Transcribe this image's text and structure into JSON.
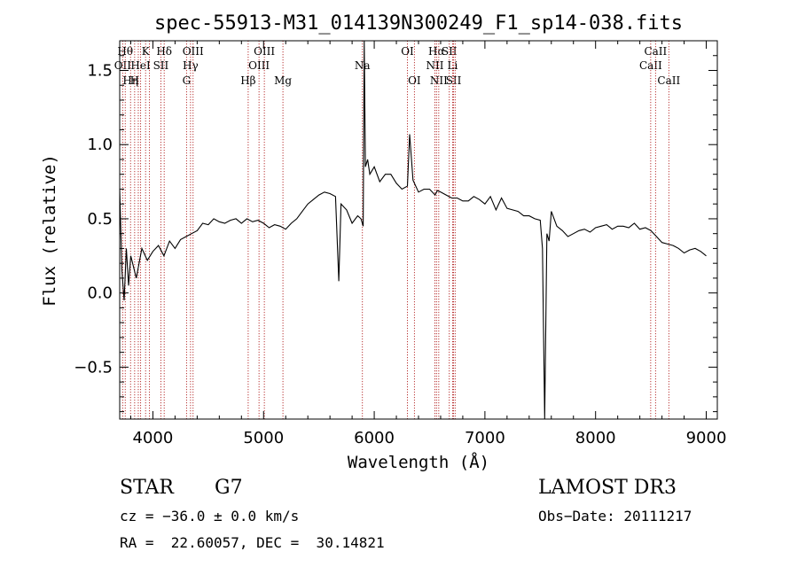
{
  "chart_data": {
    "type": "line",
    "title": "spec-55913-M31_014139N300249_F1_sp14-038.fits",
    "xlabel": "Wavelength (Å)",
    "ylabel": "Flux (relative)",
    "xlim": [
      3700,
      9100
    ],
    "ylim": [
      -0.85,
      1.7
    ],
    "x_ticks": [
      4000,
      5000,
      6000,
      7000,
      8000,
      9000
    ],
    "x_tick_labels": [
      "4000",
      "5000",
      "6000",
      "7000",
      "8000",
      "9000"
    ],
    "y_ticks": [
      -0.5,
      0.0,
      0.5,
      1.0,
      1.5
    ],
    "y_tick_labels": [
      "−0.5",
      "0.0",
      "0.5",
      "1.0",
      "1.5"
    ],
    "grid": false,
    "line_color": "#000000",
    "marker_color": "#b22222",
    "series": [
      {
        "x": [
          3700,
          3720,
          3740,
          3760,
          3780,
          3800,
          3850,
          3900,
          3950,
          4000,
          4050,
          4100,
          4150,
          4200,
          4250,
          4300,
          4350,
          4400,
          4450,
          4500,
          4550,
          4600,
          4650,
          4700,
          4750,
          4800,
          4850,
          4900,
          4950,
          5000,
          5050,
          5100,
          5150,
          5200,
          5250,
          5300,
          5350,
          5400,
          5450,
          5500,
          5550,
          5600,
          5650,
          5680,
          5700,
          5750,
          5800,
          5850,
          5880,
          5900,
          5910,
          5920,
          5940,
          5960,
          6000,
          6050,
          6100,
          6150,
          6200,
          6250,
          6300,
          6320,
          6350,
          6400,
          6450,
          6500,
          6550,
          6570,
          6600,
          6650,
          6700,
          6750,
          6800,
          6850,
          6900,
          6950,
          7000,
          7050,
          7100,
          7150,
          7200,
          7250,
          7300,
          7350,
          7400,
          7450,
          7500,
          7520,
          7540,
          7560,
          7580,
          7600,
          7650,
          7700,
          7750,
          7800,
          7850,
          7900,
          7950,
          8000,
          8050,
          8100,
          8150,
          8200,
          8250,
          8300,
          8350,
          8400,
          8450,
          8500,
          8550,
          8600,
          8650,
          8700,
          8750,
          8800,
          8850,
          8900,
          8950,
          9000
        ],
        "y": [
          0.7,
          0.15,
          -0.05,
          0.3,
          0.05,
          0.25,
          0.1,
          0.3,
          0.22,
          0.28,
          0.32,
          0.25,
          0.35,
          0.3,
          0.36,
          0.38,
          0.4,
          0.42,
          0.47,
          0.46,
          0.5,
          0.48,
          0.47,
          0.49,
          0.5,
          0.47,
          0.5,
          0.48,
          0.49,
          0.47,
          0.44,
          0.46,
          0.45,
          0.43,
          0.47,
          0.5,
          0.55,
          0.6,
          0.63,
          0.66,
          0.68,
          0.67,
          0.65,
          0.08,
          0.6,
          0.56,
          0.47,
          0.52,
          0.5,
          0.45,
          1.7,
          0.85,
          0.9,
          0.8,
          0.85,
          0.75,
          0.8,
          0.8,
          0.74,
          0.7,
          0.72,
          1.07,
          0.76,
          0.68,
          0.7,
          0.7,
          0.66,
          0.69,
          0.68,
          0.66,
          0.64,
          0.64,
          0.62,
          0.62,
          0.65,
          0.63,
          0.6,
          0.65,
          0.56,
          0.64,
          0.57,
          0.56,
          0.55,
          0.52,
          0.52,
          0.5,
          0.49,
          0.3,
          -0.85,
          0.4,
          0.35,
          0.55,
          0.45,
          0.42,
          0.38,
          0.4,
          0.42,
          0.43,
          0.41,
          0.44,
          0.45,
          0.46,
          0.43,
          0.45,
          0.45,
          0.44,
          0.47,
          0.43,
          0.44,
          0.42,
          0.38,
          0.34,
          0.33,
          0.32,
          0.3,
          0.27,
          0.29,
          0.3,
          0.28,
          0.25
        ]
      }
    ],
    "line_markers": [
      {
        "x": 3727,
        "label": "OII",
        "row": 1
      },
      {
        "x": 3750,
        "label": "Hθ",
        "row": 0
      },
      {
        "x": 3798,
        "label": "Hη",
        "row": 2
      },
      {
        "x": 3835,
        "label": "H",
        "row": 2
      },
      {
        "x": 3868,
        "label": "",
        "row": 1
      },
      {
        "x": 3889,
        "label": "HeI",
        "row": 1
      },
      {
        "x": 3934,
        "label": "K",
        "row": 0
      },
      {
        "x": 3969,
        "label": "",
        "row": 2
      },
      {
        "x": 4072,
        "label": "SII",
        "row": 1
      },
      {
        "x": 4102,
        "label": "Hδ",
        "row": 0
      },
      {
        "x": 4304,
        "label": "G",
        "row": 2
      },
      {
        "x": 4340,
        "label": "Hγ",
        "row": 1
      },
      {
        "x": 4363,
        "label": "OIII",
        "row": 0
      },
      {
        "x": 4861,
        "label": "Hβ",
        "row": 2
      },
      {
        "x": 4959,
        "label": "OIII",
        "row": 1
      },
      {
        "x": 5007,
        "label": "OIII",
        "row": 0
      },
      {
        "x": 5175,
        "label": "Mg",
        "row": 2
      },
      {
        "x": 5893,
        "label": "Na",
        "row": 1
      },
      {
        "x": 6300,
        "label": "OI",
        "row": 0
      },
      {
        "x": 6363,
        "label": "OI",
        "row": 2
      },
      {
        "x": 6548,
        "label": "NII",
        "row": 1
      },
      {
        "x": 6563,
        "label": "Hα",
        "row": 0
      },
      {
        "x": 6583,
        "label": "NII",
        "row": 2
      },
      {
        "x": 6678,
        "label": "SII",
        "row": 0
      },
      {
        "x": 6708,
        "label": "Li",
        "row": 1
      },
      {
        "x": 6717,
        "label": "SII",
        "row": 2
      },
      {
        "x": 6731,
        "label": "",
        "row": 2
      },
      {
        "x": 8498,
        "label": "CaII",
        "row": 1
      },
      {
        "x": 8542,
        "label": "CaII",
        "row": 0
      },
      {
        "x": 8662,
        "label": "CaII",
        "row": 2
      }
    ]
  },
  "info": {
    "object_type": "STAR",
    "subclass": "G7",
    "survey": "LAMOST DR3",
    "redshift": "cz = −36.0 ± 0.0 km/s",
    "obs_date": "Obs−Date: 20111217",
    "coords": "RA =  22.60057, DEC =  30.14821"
  }
}
